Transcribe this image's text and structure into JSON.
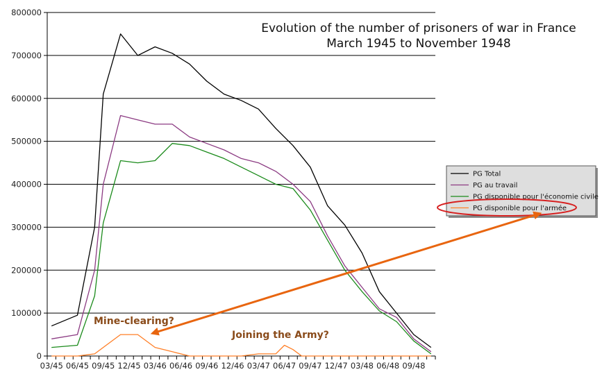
{
  "chart_data": {
    "type": "line",
    "title": [
      "Evolution of the number of prisoners of war in France",
      "March 1945 to November 1948"
    ],
    "xlabel": "",
    "ylabel": "",
    "ylim": [
      0,
      800000
    ],
    "y_ticks": [
      0,
      100000,
      200000,
      300000,
      400000,
      500000,
      600000,
      700000,
      800000
    ],
    "y_tick_labels": [
      "0",
      "100000",
      "200000",
      "300000",
      "400000",
      "500000",
      "600000",
      "700000",
      "800000"
    ],
    "grid": true,
    "x": [
      "03/45",
      "04/45",
      "05/45",
      "06/45",
      "07/45",
      "08/45",
      "09/45",
      "10/45",
      "11/45",
      "12/45",
      "01/46",
      "02/46",
      "03/46",
      "04/46",
      "05/46",
      "06/46",
      "07/46",
      "08/46",
      "09/46",
      "10/46",
      "11/46",
      "12/46",
      "01/47",
      "02/47",
      "03/47",
      "04/47",
      "05/47",
      "06/47",
      "07/47",
      "08/47",
      "09/47",
      "10/47",
      "11/47",
      "12/47",
      "01/48",
      "02/48",
      "03/48",
      "04/48",
      "05/48",
      "06/48",
      "07/48",
      "08/48",
      "09/48",
      "10/48",
      "11/48"
    ],
    "x_tick_labels": [
      "03/45",
      "06/45",
      "09/45",
      "12/45",
      "03/46",
      "06/46",
      "09/46",
      "12/46",
      "03/47",
      "06/47",
      "09/47",
      "12/47",
      "03/48",
      "06/48",
      "09/48"
    ],
    "legend_position": "right",
    "series": [
      {
        "name": "PG Total",
        "color": "#000000",
        "points": [
          [
            0,
            70000
          ],
          [
            3,
            95000
          ],
          [
            5,
            300000
          ],
          [
            6,
            610000
          ],
          [
            8,
            750000
          ],
          [
            10,
            700000
          ],
          [
            12,
            720000
          ],
          [
            14,
            705000
          ],
          [
            16,
            680000
          ],
          [
            18,
            640000
          ],
          [
            20,
            610000
          ],
          [
            22,
            595000
          ],
          [
            24,
            575000
          ],
          [
            26,
            530000
          ],
          [
            28,
            490000
          ],
          [
            30,
            440000
          ],
          [
            32,
            350000
          ],
          [
            34,
            305000
          ],
          [
            36,
            240000
          ],
          [
            38,
            150000
          ],
          [
            40,
            100000
          ],
          [
            42,
            50000
          ],
          [
            44,
            20000
          ]
        ]
      },
      {
        "name": "PG au travail",
        "color": "#8b3a82",
        "points": [
          [
            0,
            40000
          ],
          [
            3,
            50000
          ],
          [
            5,
            200000
          ],
          [
            6,
            400000
          ],
          [
            8,
            560000
          ],
          [
            10,
            550000
          ],
          [
            12,
            540000
          ],
          [
            14,
            540000
          ],
          [
            16,
            510000
          ],
          [
            18,
            495000
          ],
          [
            20,
            480000
          ],
          [
            22,
            460000
          ],
          [
            24,
            450000
          ],
          [
            26,
            430000
          ],
          [
            28,
            400000
          ],
          [
            30,
            360000
          ],
          [
            32,
            280000
          ],
          [
            34,
            210000
          ],
          [
            36,
            160000
          ],
          [
            38,
            110000
          ],
          [
            40,
            90000
          ],
          [
            42,
            40000
          ],
          [
            44,
            10000
          ]
        ]
      },
      {
        "name": "PG disponible pour l'économie civile",
        "color": "#1a8a1a",
        "points": [
          [
            0,
            20000
          ],
          [
            3,
            25000
          ],
          [
            5,
            140000
          ],
          [
            6,
            310000
          ],
          [
            8,
            455000
          ],
          [
            10,
            450000
          ],
          [
            12,
            455000
          ],
          [
            14,
            495000
          ],
          [
            16,
            490000
          ],
          [
            18,
            475000
          ],
          [
            20,
            460000
          ],
          [
            22,
            440000
          ],
          [
            24,
            420000
          ],
          [
            26,
            400000
          ],
          [
            28,
            390000
          ],
          [
            30,
            340000
          ],
          [
            32,
            270000
          ],
          [
            34,
            200000
          ],
          [
            36,
            150000
          ],
          [
            38,
            105000
          ],
          [
            40,
            80000
          ],
          [
            42,
            35000
          ],
          [
            44,
            5000
          ]
        ]
      },
      {
        "name": "PG disponible pour l'armée",
        "color": "#ff7f27",
        "points": [
          [
            0,
            0
          ],
          [
            3,
            0
          ],
          [
            5,
            5000
          ],
          [
            6,
            20000
          ],
          [
            8,
            50000
          ],
          [
            10,
            50000
          ],
          [
            12,
            20000
          ],
          [
            14,
            10000
          ],
          [
            16,
            0
          ],
          [
            18,
            0
          ],
          [
            20,
            0
          ],
          [
            22,
            0
          ],
          [
            24,
            5000
          ],
          [
            26,
            5000
          ],
          [
            27,
            25000
          ],
          [
            28,
            15000
          ],
          [
            29,
            0
          ],
          [
            30,
            0
          ],
          [
            44,
            0
          ]
        ]
      }
    ],
    "annotations": [
      {
        "text": "Mine-clearing?",
        "color": "#8a4b1a"
      },
      {
        "text": "Joining the Army?",
        "color": "#8a4b1a"
      }
    ],
    "highlight_legend_entry": "PG disponible pour l'armée",
    "arrow_color": "#e8650f",
    "highlight_color": "#d61f1f"
  }
}
